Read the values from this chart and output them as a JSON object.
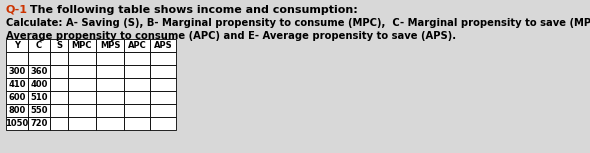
{
  "title_prefix": "Q-1",
  "title_text": " The following table shows income and consumption:",
  "line2": "Calculate: A- Saving (S), B- Marginal propensity to consume (MPC),  C- Marginal propensity to save (MPS), D-",
  "line3": "Average propensity to consume (APC) and E- Average propensity to save (APS).",
  "col_headers": [
    "Y",
    "C",
    "S",
    "MPC",
    "MPS",
    "APC",
    "APS"
  ],
  "rows": [
    [
      "",
      "",
      "",
      "",
      "",
      "",
      ""
    ],
    [
      "300",
      "360",
      "",
      "",
      "",
      "",
      ""
    ],
    [
      "410",
      "400",
      "",
      "",
      "",
      "",
      ""
    ],
    [
      "600",
      "510",
      "",
      "",
      "",
      "",
      ""
    ],
    [
      "800",
      "550",
      "",
      "",
      "",
      "",
      ""
    ],
    [
      "1050",
      "720",
      "",
      "",
      "",
      "",
      ""
    ]
  ],
  "bg_color": "#d8d8d8",
  "table_border_color": "#000000",
  "text_color": "#000000",
  "title_prefix_color": "#cc3300",
  "font_size_title": 8.0,
  "font_size_body": 7.2,
  "font_size_table": 6.0
}
